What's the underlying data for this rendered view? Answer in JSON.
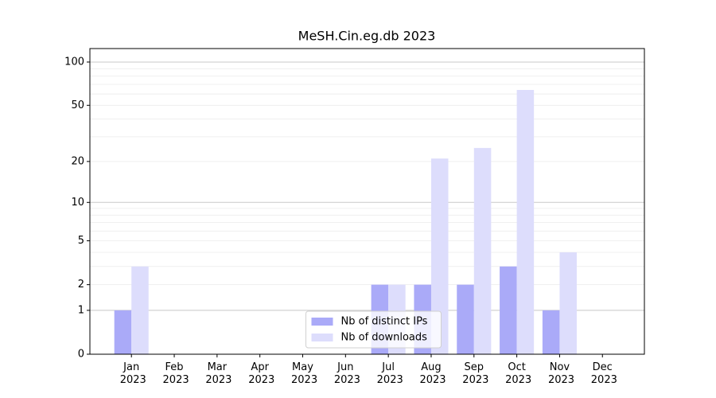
{
  "chart_data": {
    "type": "bar",
    "title": "MeSH.Cin.eg.db 2023",
    "categories": [
      "Jan\n2023",
      "Feb\n2023",
      "Mar\n2023",
      "Apr\n2023",
      "May\n2023",
      "Jun\n2023",
      "Jul\n2023",
      "Aug\n2023",
      "Sep\n2023",
      "Oct\n2023",
      "Nov\n2023",
      "Dec\n2023"
    ],
    "series": [
      {
        "name": "Nb of distinct IPs",
        "color": "#aaaaf8",
        "values": [
          1,
          0,
          0,
          0,
          0,
          0,
          2,
          2,
          2,
          3,
          1,
          0
        ]
      },
      {
        "name": "Nb of downloads",
        "color": "#ddddfc",
        "values": [
          3,
          0,
          0,
          0,
          0,
          0,
          2,
          21,
          25,
          64,
          4,
          0
        ]
      }
    ],
    "yscale": "log1p",
    "ylim": [
      0,
      124
    ],
    "yticks": [
      0,
      1,
      2,
      5,
      10,
      20,
      50,
      100
    ],
    "major_grid": [
      1,
      10,
      100
    ],
    "minor_grid": [
      2,
      3,
      4,
      5,
      6,
      7,
      8,
      9,
      20,
      30,
      40,
      50,
      60,
      70,
      80,
      90
    ],
    "legend": "lower center"
  }
}
